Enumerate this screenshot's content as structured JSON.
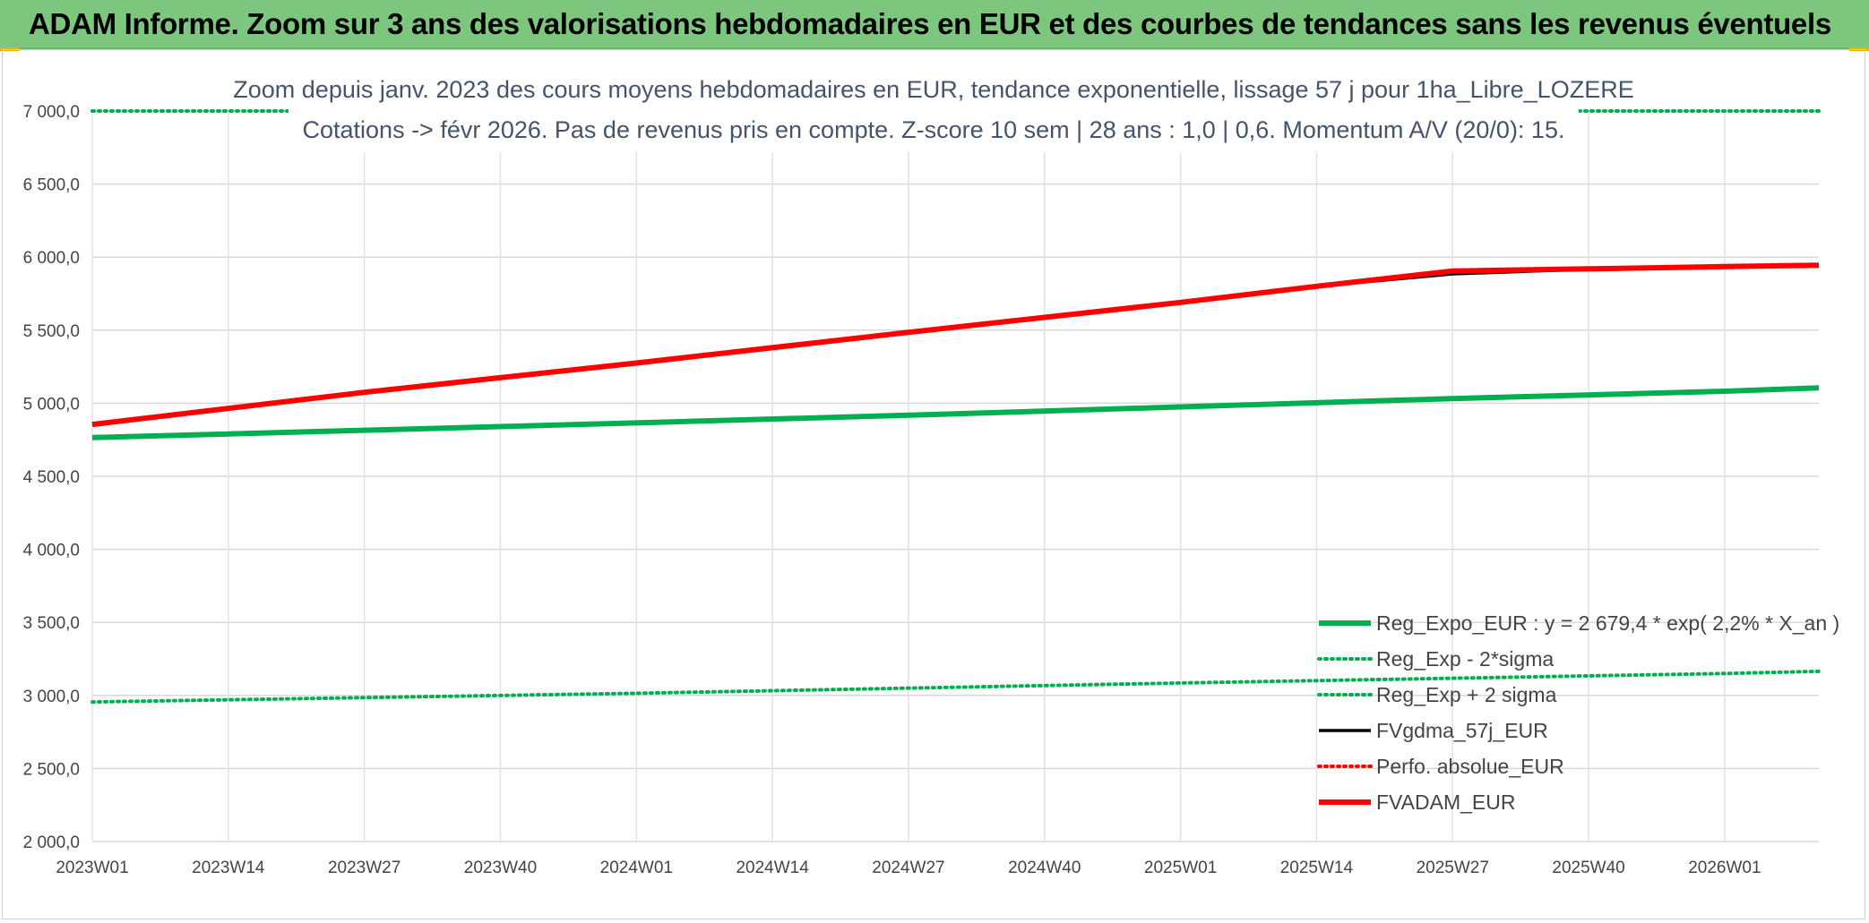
{
  "header": {
    "title": "ADAM Informe. Zoom sur 3 ans des valorisations hebdomadaires en EUR et des courbes de tendances sans les revenus éventuels"
  },
  "chart_data": {
    "type": "line",
    "title_line1": "Zoom depuis janv. 2023 des cours moyens hebdomadaires en EUR, tendance exponentielle, lissage 57 j pour 1ha_Libre_LOZERE",
    "title_line2": "Cotations -> févr 2026. Pas de revenus pris en compte. Z-score 10 sem | 28 ans : 1,0 | 0,6. Momentum A/V (20/0): 15.",
    "x_tick_labels": [
      "2023W01",
      "2023W14",
      "2023W27",
      "2023W40",
      "2024W01",
      "2024W14",
      "2024W27",
      "2024W40",
      "2025W01",
      "2025W14",
      "2025W27",
      "2025W40",
      "2026W01"
    ],
    "x_tick_positions": [
      0,
      13,
      26,
      39,
      52,
      65,
      78,
      91,
      104,
      117,
      130,
      143,
      156
    ],
    "x_range": [
      0,
      165
    ],
    "ylim": [
      2000,
      7000
    ],
    "y_ticks": [
      2000,
      2500,
      3000,
      3500,
      4000,
      4500,
      5000,
      5500,
      6000,
      6500,
      7000
    ],
    "y_tick_labels": [
      "2 000,0",
      "2 500,0",
      "3 000,0",
      "3 500,0",
      "4 000,0",
      "4 500,0",
      "5 000,0",
      "5 500,0",
      "6 000,0",
      "6 500,0",
      "7 000,0"
    ],
    "grid": true,
    "legend_position": "bottom-right",
    "series": [
      {
        "name": "Reg_Expo_EUR : y = 2 679,4 * exp( 2,2% *  X_an )",
        "color": "#00b050",
        "style": "solid-thick",
        "x": [
          0,
          26,
          52,
          78,
          104,
          130,
          156,
          165
        ],
        "values": [
          4765,
          4815,
          4865,
          4918,
          4975,
          5032,
          5082,
          5105
        ]
      },
      {
        "name": "Reg_Exp - 2*sigma",
        "color": "#00b050",
        "style": "dotted",
        "x": [
          0,
          52,
          104,
          156,
          165
        ],
        "values": [
          2955,
          3015,
          3085,
          3150,
          3165
        ]
      },
      {
        "name": "Reg_Exp + 2 sigma",
        "color": "#00b050",
        "style": "dotted",
        "x": [
          0,
          165
        ],
        "values": [
          7000,
          7000
        ]
      },
      {
        "name": "FVgdma_57j_EUR",
        "color": "#000000",
        "style": "solid",
        "x": [
          0,
          26,
          52,
          78,
          104,
          117,
          130,
          143,
          156,
          165
        ],
        "values": [
          4855,
          5075,
          5275,
          5485,
          5690,
          5800,
          5885,
          5918,
          5935,
          5945
        ]
      },
      {
        "name": "Perfo. absolue_EUR",
        "color": "#ff0000",
        "style": "dotted",
        "x": [],
        "values": []
      },
      {
        "name": "FVADAM_EUR",
        "color": "#ff0000",
        "style": "solid-thick",
        "x": [
          0,
          26,
          52,
          78,
          104,
          117,
          130,
          143,
          156,
          165
        ],
        "values": [
          4855,
          5075,
          5275,
          5485,
          5690,
          5800,
          5905,
          5920,
          5935,
          5945
        ]
      }
    ]
  }
}
